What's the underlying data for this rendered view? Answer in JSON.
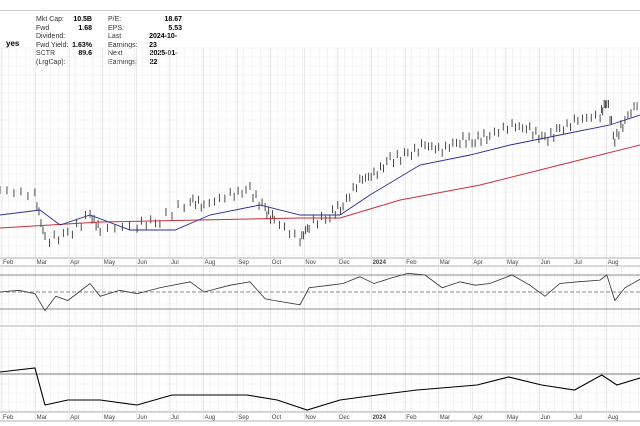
{
  "stats_left": [
    {
      "label": "Mkt Cap:",
      "value": "10.5B"
    },
    {
      "label": "Fwd Dividend:",
      "value": "1.68"
    },
    {
      "label": "Fwd Yield:",
      "value": "1.63%"
    },
    {
      "label": "SCTR (LrgCap):",
      "value": "89.6"
    }
  ],
  "stats_right": [
    {
      "label": "P/E:",
      "value": "18.67"
    },
    {
      "label": "EPS:",
      "value": "5.53"
    },
    {
      "label": "Last Earnings:",
      "value": "2024-10-23"
    },
    {
      "label": "Next Earnings:",
      "value": "2025-01-22"
    }
  ],
  "flag": "yes",
  "chart_data": {
    "type": "line",
    "x_ticks": [
      "Feb",
      "Mar",
      "Apr",
      "May",
      "Jun",
      "Jul",
      "Aug",
      "Sep",
      "Oct",
      "Nov",
      "Dec",
      "2024",
      "Feb",
      "Mar",
      "Apr",
      "May",
      "Jun",
      "Jul",
      "Aug"
    ],
    "price": [
      [
        0.94,
        70
      ],
      [
        1.98,
        65
      ],
      [
        2.28,
        20
      ],
      [
        2.96,
        25
      ],
      [
        3.62,
        45
      ],
      [
        3.92,
        30
      ],
      [
        5.02,
        35
      ],
      [
        5.7,
        40
      ],
      [
        6.6,
        60
      ],
      [
        7.01,
        55
      ],
      [
        7.79,
        65
      ],
      [
        8.38,
        70
      ],
      [
        8.83,
        50
      ],
      [
        9.1,
        40
      ],
      [
        9.87,
        20
      ],
      [
        10.14,
        35
      ],
      [
        10.76,
        45
      ],
      [
        11.15,
        55
      ],
      [
        11.65,
        80
      ],
      [
        12.07,
        85
      ],
      [
        12.55,
        100
      ],
      [
        13.08,
        105
      ],
      [
        13.59,
        115
      ],
      [
        14.1,
        110
      ],
      [
        14.63,
        120
      ],
      [
        15.08,
        120
      ],
      [
        15.52,
        125
      ],
      [
        16.18,
        135
      ],
      [
        16.71,
        130
      ],
      [
        17.16,
        120
      ],
      [
        17.6,
        130
      ],
      [
        18.14,
        140
      ],
      [
        18.8,
        145
      ],
      [
        19.0,
        160
      ],
      [
        19.24,
        120
      ],
      [
        19.54,
        140
      ],
      [
        19.99,
        160
      ]
    ],
    "ma50": [
      [
        0.94,
        45
      ],
      [
        2.13,
        50
      ],
      [
        2.73,
        35
      ],
      [
        3.62,
        45
      ],
      [
        4.81,
        30
      ],
      [
        6.15,
        30
      ],
      [
        7.19,
        45
      ],
      [
        8.68,
        55
      ],
      [
        9.87,
        45
      ],
      [
        11.06,
        45
      ],
      [
        11.95,
        65
      ],
      [
        13.44,
        95
      ],
      [
        14.93,
        105
      ],
      [
        16.12,
        115
      ],
      [
        17.6,
        125
      ],
      [
        19.09,
        135
      ],
      [
        19.99,
        145
      ]
    ],
    "ma200": [
      [
        0.94,
        32
      ],
      [
        3.92,
        38
      ],
      [
        6.9,
        40
      ],
      [
        9.87,
        42
      ],
      [
        11.06,
        42
      ],
      [
        12.85,
        60
      ],
      [
        15.23,
        75
      ],
      [
        17.6,
        95
      ],
      [
        19.99,
        115
      ]
    ],
    "rsi": {
      "levels": [
        70,
        50,
        30
      ],
      "values": [
        [
          0.94,
          50
        ],
        [
          1.5,
          52
        ],
        [
          1.98,
          48
        ],
        [
          2.28,
          28
        ],
        [
          2.6,
          45
        ],
        [
          2.96,
          40
        ],
        [
          3.62,
          60
        ],
        [
          3.92,
          45
        ],
        [
          4.5,
          52
        ],
        [
          5.02,
          48
        ],
        [
          5.7,
          55
        ],
        [
          6.6,
          62
        ],
        [
          7.01,
          50
        ],
        [
          7.79,
          58
        ],
        [
          8.38,
          62
        ],
        [
          8.83,
          42
        ],
        [
          9.1,
          40
        ],
        [
          9.87,
          35
        ],
        [
          10.14,
          55
        ],
        [
          10.76,
          58
        ],
        [
          11.15,
          60
        ],
        [
          11.65,
          68
        ],
        [
          12.07,
          60
        ],
        [
          12.55,
          66
        ],
        [
          13.08,
          72
        ],
        [
          13.59,
          70
        ],
        [
          14.1,
          55
        ],
        [
          14.63,
          62
        ],
        [
          15.08,
          58
        ],
        [
          15.52,
          60
        ],
        [
          16.18,
          70
        ],
        [
          16.71,
          58
        ],
        [
          17.16,
          45
        ],
        [
          17.6,
          60
        ],
        [
          18.14,
          62
        ],
        [
          18.8,
          64
        ],
        [
          19.0,
          70
        ],
        [
          19.24,
          40
        ],
        [
          19.54,
          55
        ],
        [
          19.99,
          65
        ]
      ]
    },
    "lower": {
      "reference": 86,
      "values": [
        [
          0.94,
          88
        ],
        [
          1.98,
          92
        ],
        [
          2.28,
          55
        ],
        [
          2.96,
          60
        ],
        [
          3.92,
          60
        ],
        [
          5.02,
          55
        ],
        [
          6.06,
          65
        ],
        [
          7.1,
          65
        ],
        [
          8.29,
          65
        ],
        [
          9.19,
          60
        ],
        [
          10.08,
          50
        ],
        [
          11.06,
          60
        ],
        [
          12.16,
          65
        ],
        [
          13.35,
          70
        ],
        [
          15.14,
          75
        ],
        [
          16.08,
          83
        ],
        [
          17.06,
          75
        ],
        [
          18.04,
          70
        ],
        [
          18.85,
          85
        ],
        [
          19.3,
          75
        ],
        [
          19.99,
          82
        ]
      ]
    }
  }
}
